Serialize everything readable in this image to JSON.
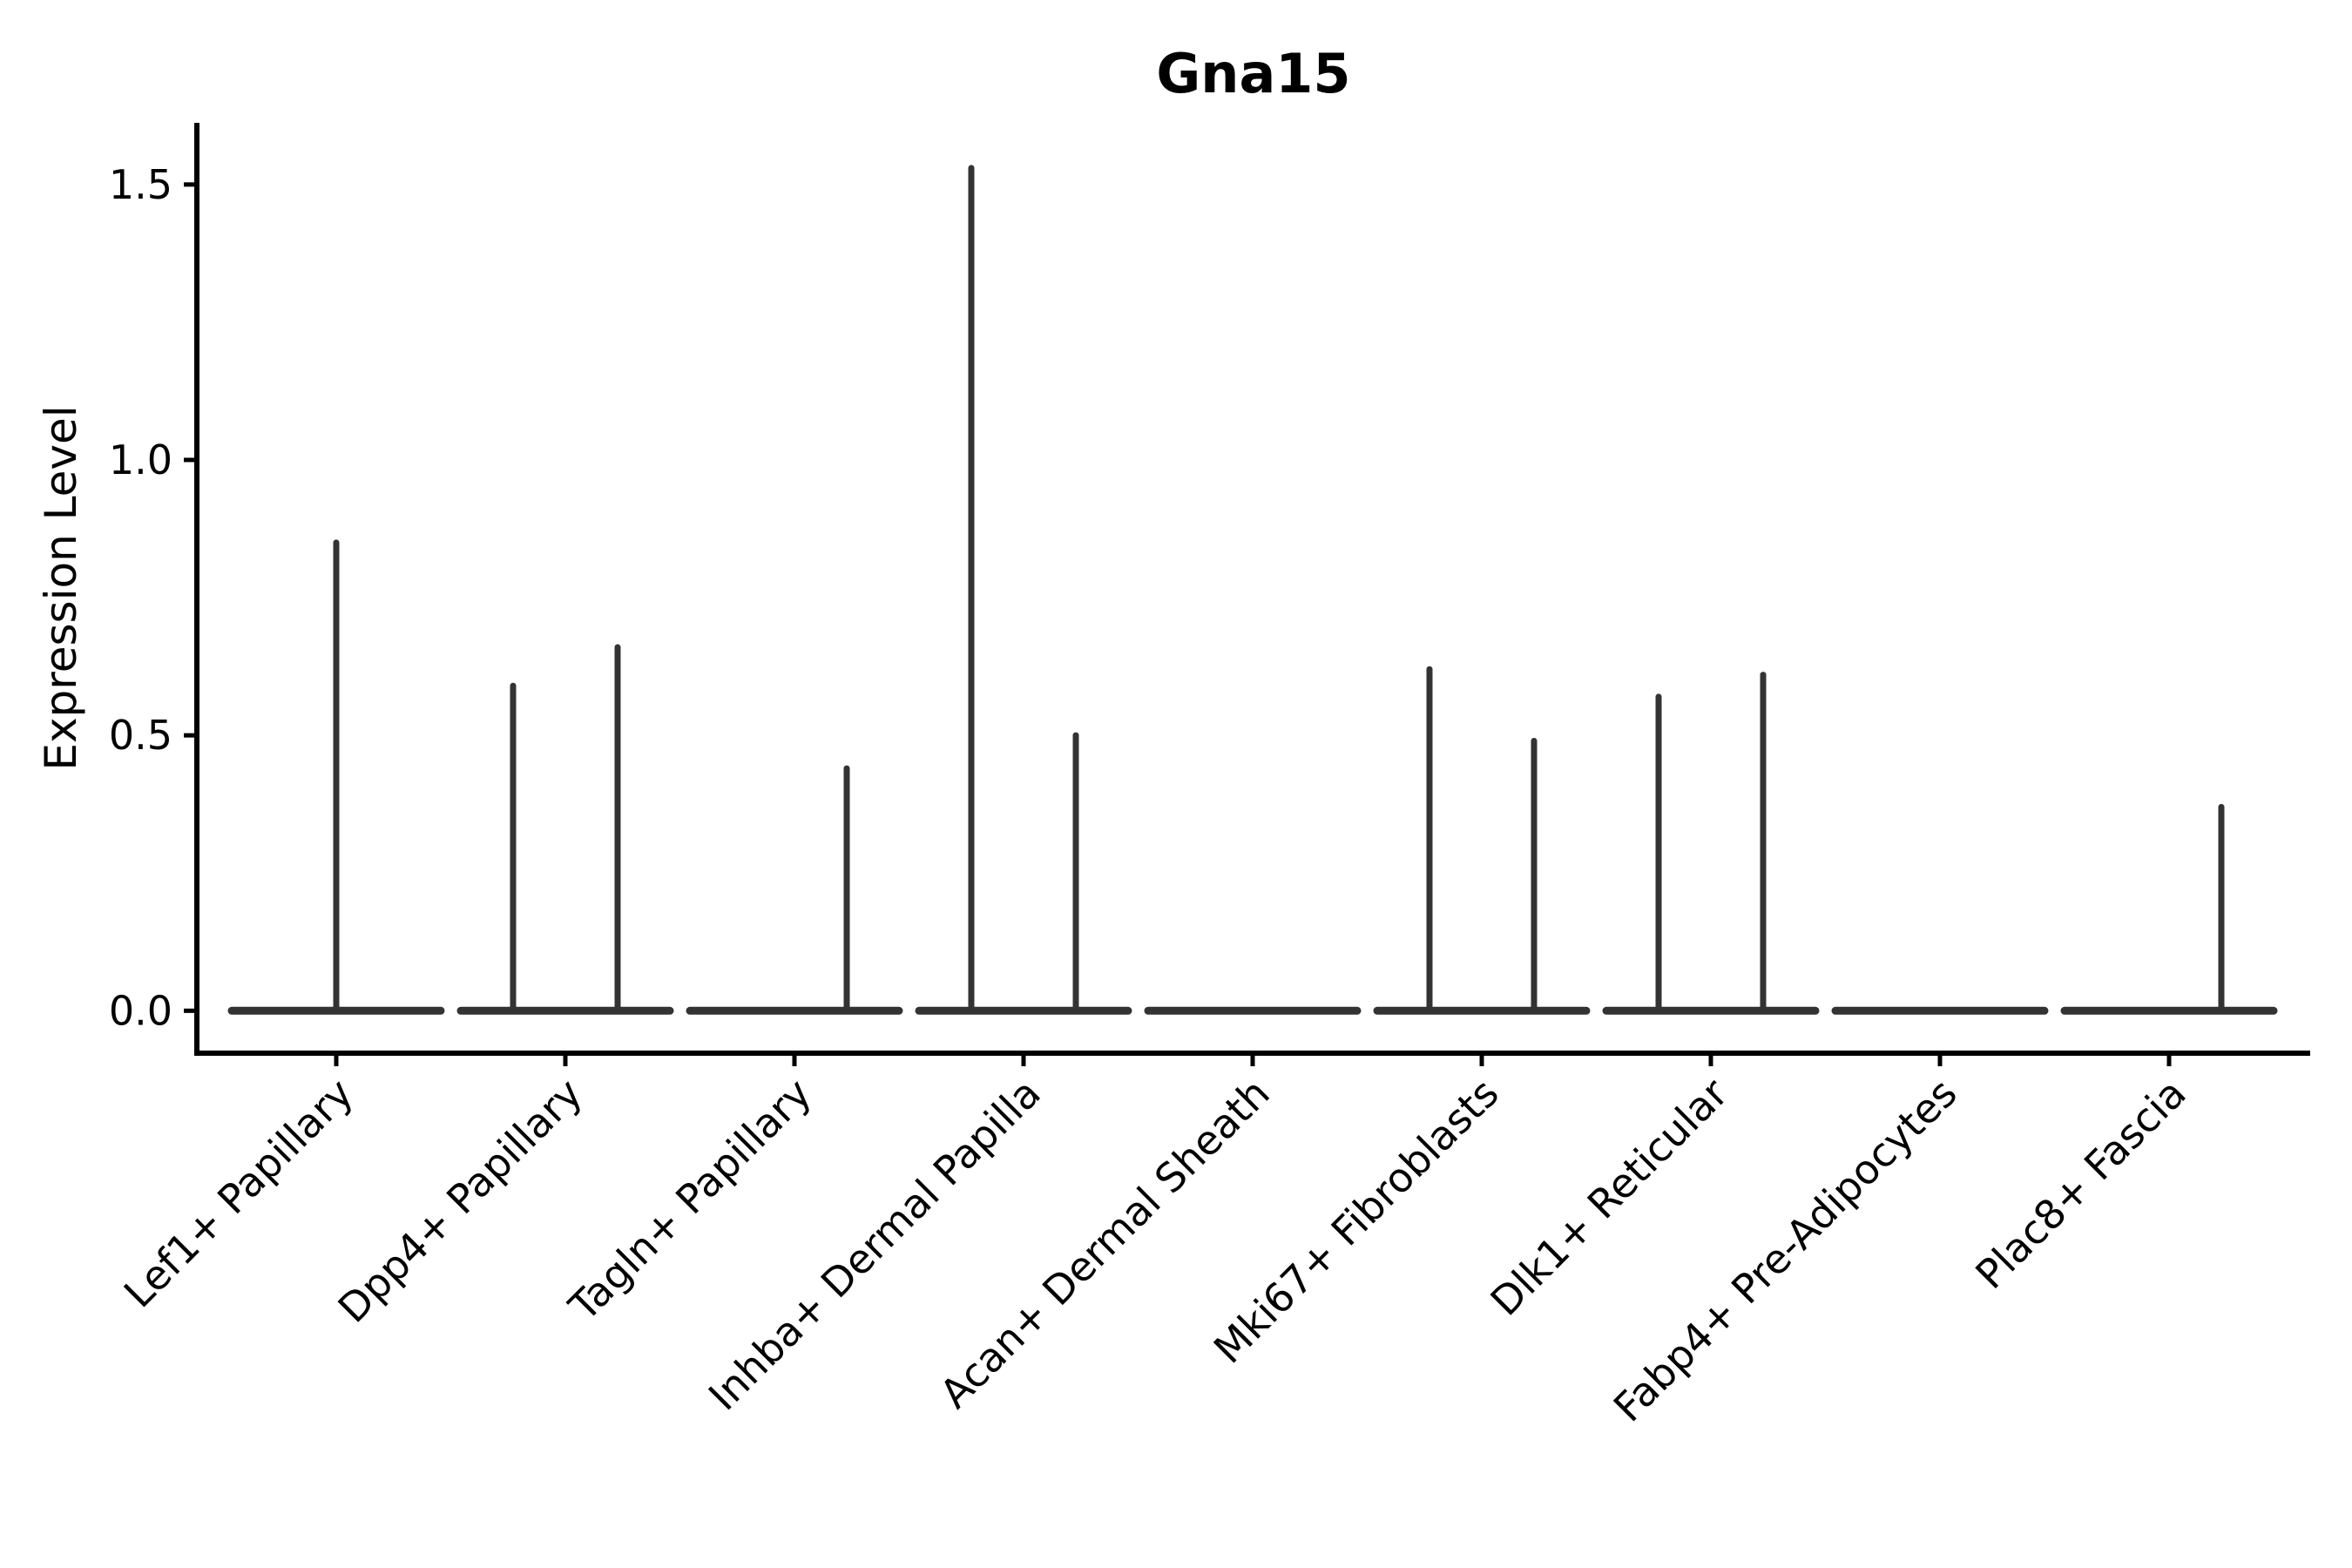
{
  "title": "Gna15",
  "y_axis": {
    "label": "Expression Level",
    "ticks": [
      {
        "label": "0.0",
        "value": 0.0
      },
      {
        "label": "0.5",
        "value": 0.5
      },
      {
        "label": "1.0",
        "value": 1.0
      },
      {
        "label": "1.5",
        "value": 1.5
      }
    ]
  },
  "chart_data": {
    "type": "violin",
    "title": "Gna15",
    "xlabel": "",
    "ylabel": "Expression Level",
    "ylim": [
      -0.077,
      1.612
    ],
    "grid": false,
    "legend": null,
    "note": "Collapsed violins: dense mass at 0 drawn as flat baseline per category, thin vertical spikes reach the max expression of dodged sub-violins",
    "categories": [
      "Lef1+ Papillary",
      "Dpp4+ Papillary",
      "Tagln+ Papillary",
      "Inhba+ Dermal Papilla",
      "Acan+ Dermal Sheath",
      "Mki67+ Fibroblasts",
      "Dlk1+ Reticular",
      "Fabp4+ Pre-Adipocytes",
      "Plac8+ Fascia"
    ],
    "violins": [
      {
        "category": "Lef1+ Papillary",
        "spikes": [
          {
            "position": "center",
            "max": 0.85
          }
        ]
      },
      {
        "category": "Dpp4+ Papillary",
        "spikes": [
          {
            "position": "left",
            "max": 0.59
          },
          {
            "position": "right",
            "max": 0.66
          }
        ]
      },
      {
        "category": "Tagln+ Papillary",
        "spikes": [
          {
            "position": "right",
            "max": 0.44
          }
        ]
      },
      {
        "category": "Inhba+ Dermal Papilla",
        "spikes": [
          {
            "position": "left",
            "max": 1.53
          },
          {
            "position": "right",
            "max": 0.5
          }
        ]
      },
      {
        "category": "Acan+ Dermal Sheath",
        "spikes": []
      },
      {
        "category": "Mki67+ Fibroblasts",
        "spikes": [
          {
            "position": "left",
            "max": 0.62
          },
          {
            "position": "right",
            "max": 0.49
          }
        ]
      },
      {
        "category": "Dlk1+ Reticular",
        "spikes": [
          {
            "position": "left",
            "max": 0.57
          },
          {
            "position": "right",
            "max": 0.61
          }
        ]
      },
      {
        "category": "Fabp4+ Pre-Adipocytes",
        "spikes": []
      },
      {
        "category": "Plac8+ Fascia",
        "spikes": [
          {
            "position": "right",
            "max": 0.37
          }
        ]
      }
    ]
  },
  "colors": {
    "background": "#ffffff",
    "axis": "#000000",
    "text": "#000000",
    "violin_stroke": "#333333"
  }
}
